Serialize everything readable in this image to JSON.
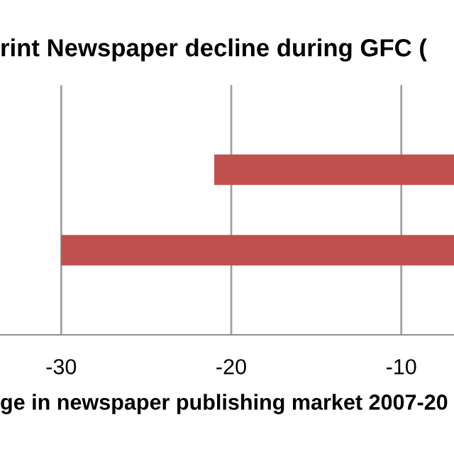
{
  "chart_data": {
    "type": "bar",
    "orientation": "horizontal",
    "title": "rint Newspaper decline during GFC (",
    "xlabel": "ge in newspaper publishing market 2007-20",
    "categories": [
      null,
      null
    ],
    "values": [
      -21,
      -30
    ],
    "color": "#c0504d",
    "xlim": [
      -33.6,
      -6.9
    ],
    "xticks": [
      -30,
      -20,
      -10
    ],
    "grid": "x",
    "legend": false
  }
}
